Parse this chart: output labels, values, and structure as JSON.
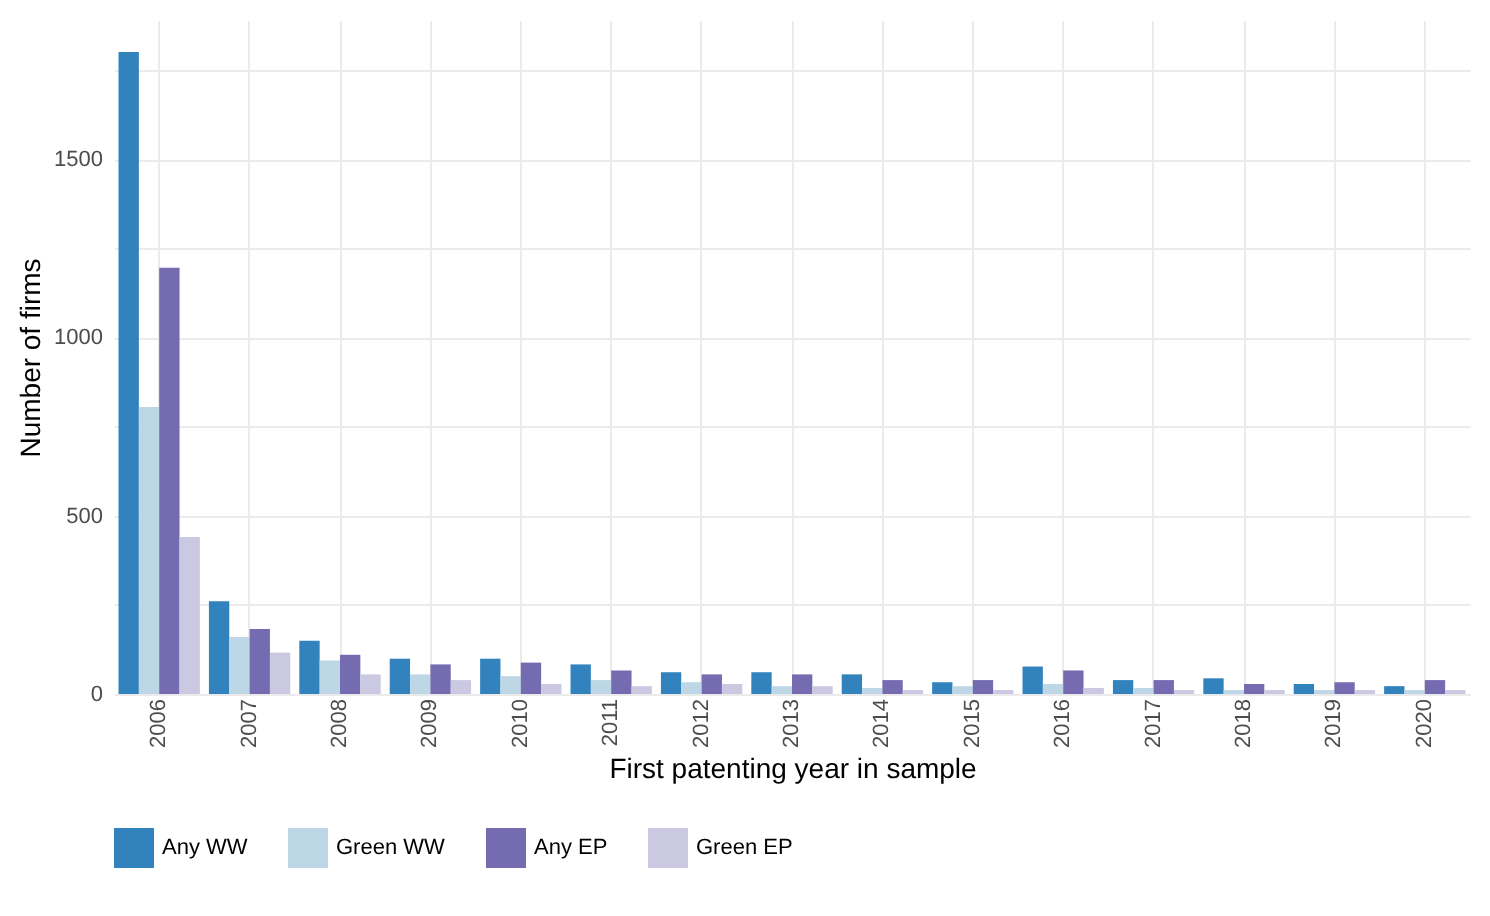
{
  "chart_data": {
    "type": "bar",
    "xlabel": "First patenting year in sample",
    "ylabel": "Number of firms",
    "categories": [
      "2006",
      "2007",
      "2008",
      "2009",
      "2010",
      "2011",
      "2012",
      "2013",
      "2014",
      "2015",
      "2016",
      "2017",
      "2018",
      "2019",
      "2020"
    ],
    "series": [
      {
        "name": "Any WW",
        "color": "#3182bd",
        "values": [
          1800,
          260,
          149,
          99,
          99,
          83,
          61,
          61,
          55,
          33,
          77,
          39,
          44,
          28,
          22
        ]
      },
      {
        "name": "Green WW",
        "color": "#bdd7e7",
        "values": [
          805,
          160,
          94,
          55,
          50,
          39,
          33,
          22,
          17,
          22,
          28,
          17,
          11,
          11,
          11
        ]
      },
      {
        "name": "Any EP",
        "color": "#756bb1",
        "values": [
          1195,
          182,
          110,
          83,
          88,
          66,
          55,
          55,
          39,
          39,
          66,
          39,
          28,
          33,
          39
        ]
      },
      {
        "name": "Green EP",
        "color": "#cbc9e2",
        "values": [
          440,
          116,
          55,
          39,
          28,
          22,
          28,
          22,
          11,
          11,
          17,
          11,
          11,
          11,
          11
        ]
      }
    ],
    "ylim": [
      0,
      1890
    ],
    "yticks": [
      0,
      {
        "value": 250,
        "label": null
      },
      500,
      {
        "value": 750,
        "label": null
      },
      1000,
      {
        "value": 1250,
        "label": null
      },
      1500,
      {
        "value": 1750,
        "label": null
      }
    ],
    "grid": true,
    "legend": "bottom"
  }
}
